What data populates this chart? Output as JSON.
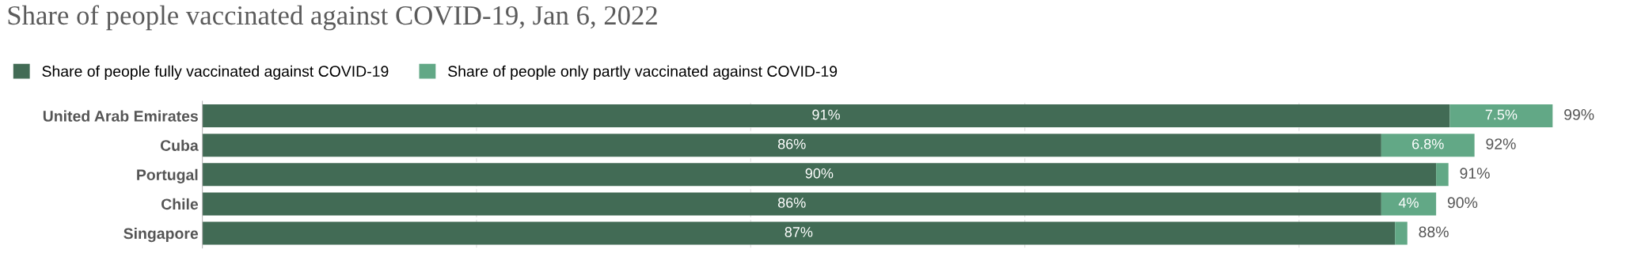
{
  "chart_data": {
    "type": "bar",
    "orientation": "horizontal",
    "stacked": true,
    "title": "Share of people vaccinated against COVID-19, Jan 6, 2022",
    "categories": [
      "United Arab Emirates",
      "Cuba",
      "Portugal",
      "Chile",
      "Singapore"
    ],
    "series": [
      {
        "name": "Share of people fully vaccinated against COVID-19",
        "color": "#426b55",
        "values": [
          91,
          86,
          90,
          86,
          87
        ],
        "value_labels": [
          "91%",
          "86%",
          "90%",
          "86%",
          "87%"
        ]
      },
      {
        "name": "Share of people only partly vaccinated against COVID-19",
        "color": "#62a886",
        "values": [
          7.5,
          6.8,
          0.9,
          4,
          0.9
        ],
        "value_labels": [
          "7.5%",
          "6.8%",
          null,
          "4%",
          null
        ]
      }
    ],
    "totals": [
      "99%",
      "92%",
      "91%",
      "90%",
      "88%"
    ],
    "xticks": [
      {
        "value": 0,
        "label": null
      },
      {
        "value": 20,
        "label": null
      },
      {
        "value": 40,
        "label": null
      },
      {
        "value": 60,
        "label": null
      },
      {
        "value": 80,
        "label": null
      }
    ],
    "tick_labels": "y",
    "grid": "x",
    "legend": "top left"
  }
}
